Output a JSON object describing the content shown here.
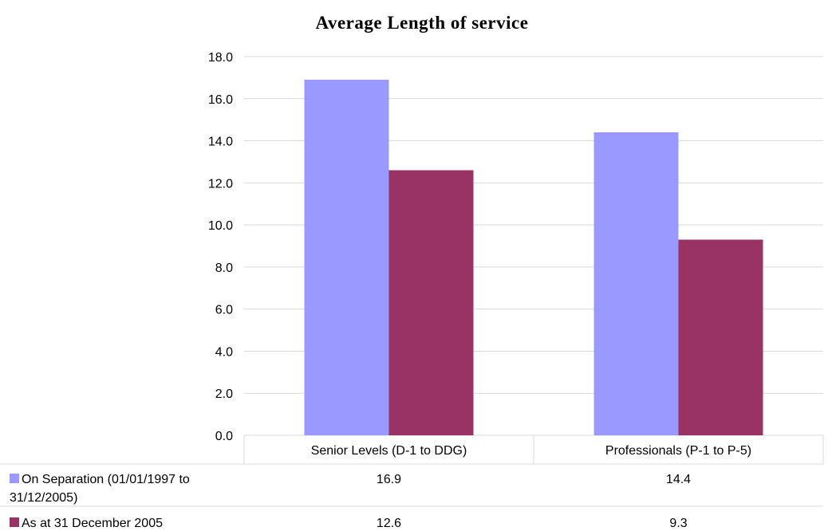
{
  "chart_data": {
    "type": "bar",
    "title": "Average Length of service",
    "categories": [
      "Senior Levels (D-1 to DDG)",
      "Professionals (P-1 to P-5)"
    ],
    "series": [
      {
        "name_lines": [
          "On Separation (01/01/1997 to",
          "31/12/2005)"
        ],
        "values": [
          16.9,
          14.4
        ],
        "value_labels": [
          "16.9",
          "14.4"
        ],
        "color": "#9999ff"
      },
      {
        "name_lines": [
          "As at 31 December 2005"
        ],
        "values": [
          12.6,
          9.3
        ],
        "value_labels": [
          "12.6",
          "9.3"
        ],
        "color": "#993366"
      }
    ],
    "yticks": [
      "0.0",
      "2.0",
      "4.0",
      "6.0",
      "8.0",
      "10.0",
      "12.0",
      "14.0",
      "16.0",
      "18.0"
    ],
    "ylim": [
      0,
      18
    ],
    "grid": true,
    "legend_position": "data table below chart"
  }
}
